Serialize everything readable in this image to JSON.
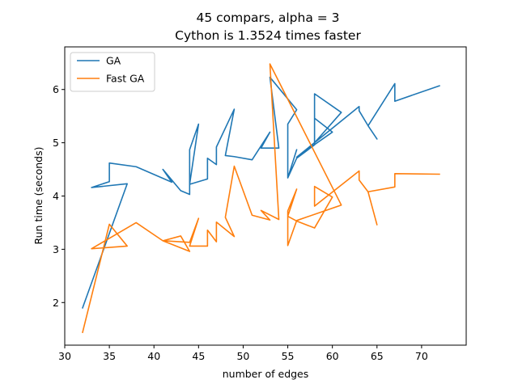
{
  "chart_data": {
    "type": "line",
    "title": "45 compars, alpha = 3",
    "subtitle": "Cython is 1.3524 times faster",
    "xlabel": "number of edges",
    "ylabel": "Run time (seconds)",
    "xlim": [
      30,
      75
    ],
    "ylim": [
      1.2,
      6.8
    ],
    "xticks": [
      30,
      35,
      40,
      45,
      50,
      55,
      60,
      65,
      70
    ],
    "yticks": [
      2,
      3,
      4,
      5,
      6
    ],
    "grid": false,
    "legend_position": "top-left",
    "series": [
      {
        "name": "GA",
        "color": "#1f77b4",
        "x": [
          32,
          37,
          33,
          35,
          35,
          38,
          42,
          41,
          43,
          44,
          44,
          45,
          44,
          46,
          46,
          47,
          47,
          49,
          48,
          49,
          51,
          53,
          52,
          54,
          53,
          56,
          55,
          55,
          56,
          55,
          56,
          58,
          58,
          61,
          58,
          58,
          60,
          56,
          63,
          63,
          64,
          65,
          64,
          67,
          67,
          72
        ],
        "y": [
          1.9,
          4.23,
          4.16,
          4.27,
          4.62,
          4.55,
          4.26,
          4.5,
          4.1,
          4.03,
          4.87,
          5.35,
          4.22,
          4.32,
          4.71,
          4.59,
          4.92,
          5.63,
          4.76,
          4.74,
          4.68,
          5.2,
          4.9,
          4.9,
          6.23,
          5.62,
          5.35,
          4.34,
          4.87,
          4.34,
          4.71,
          4.96,
          5.92,
          5.57,
          5.0,
          5.46,
          5.2,
          4.73,
          5.68,
          5.6,
          5.32,
          5.07,
          5.32,
          6.11,
          5.78,
          6.07
        ]
      },
      {
        "name": "Fast GA",
        "color": "#ff7f0e",
        "x": [
          32,
          35,
          37,
          33,
          38,
          41,
          43,
          44,
          41,
          44,
          45,
          44,
          46,
          46,
          47,
          47,
          49,
          48,
          49,
          51,
          53,
          52,
          54,
          53,
          61,
          56,
          55,
          55,
          56,
          55,
          56,
          58,
          60,
          58,
          58,
          63,
          63,
          64,
          65,
          64,
          67,
          67,
          72
        ],
        "y": [
          1.44,
          3.47,
          3.06,
          3.01,
          3.5,
          3.16,
          3.25,
          2.96,
          3.16,
          3.13,
          3.58,
          3.06,
          3.06,
          3.36,
          3.14,
          3.51,
          3.24,
          3.6,
          4.56,
          3.64,
          3.55,
          3.73,
          3.56,
          6.48,
          3.83,
          3.54,
          3.07,
          3.72,
          4.13,
          3.62,
          3.53,
          3.4,
          3.98,
          4.18,
          3.81,
          4.47,
          4.3,
          4.08,
          3.46,
          4.08,
          4.17,
          4.42,
          4.41
        ]
      }
    ]
  }
}
